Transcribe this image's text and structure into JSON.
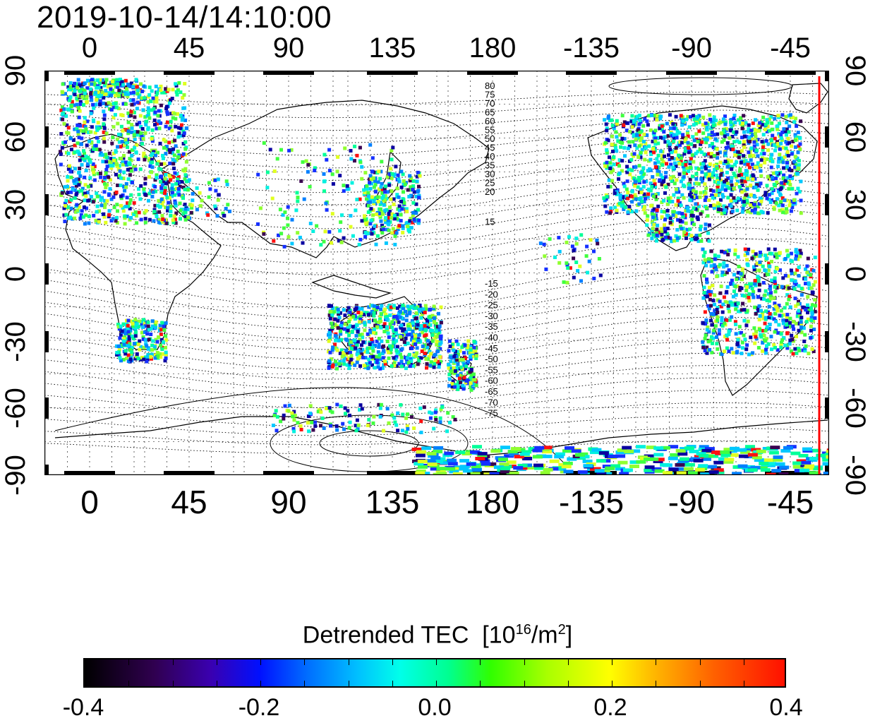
{
  "timestamp": "2019-10-14/14:10:00",
  "map": {
    "lon_ticks": [
      "0",
      "45",
      "90",
      "135",
      "180",
      "-135",
      "-90",
      "-45"
    ],
    "lat_ticks_left": [
      "90",
      "60",
      "30",
      "0",
      "-30",
      "-60",
      "-90"
    ],
    "lat_ticks_right": [
      "90",
      "60",
      "30",
      "0",
      "-30",
      "-60",
      "-90"
    ],
    "contour_labels_north": [
      "80",
      "75",
      "70",
      "65",
      "60",
      "55",
      "50",
      "45",
      "40",
      "35",
      "30",
      "25",
      "20",
      "15"
    ],
    "contour_labels_south": [
      "-15",
      "-20",
      "-25",
      "-30",
      "-35",
      "-40",
      "-45",
      "-50",
      "-55",
      "-60",
      "-65",
      "-70",
      "-75"
    ],
    "lon_range": [
      -22,
      340
    ],
    "lat_range": [
      -90,
      90
    ],
    "terminator_color": "#ff0000"
  },
  "colorbar": {
    "title": "Detrended TEC",
    "unit_base": "10",
    "unit_exp": "16",
    "unit_mid": "/m",
    "unit_exp2": "2",
    "ticks": [
      "-0.4",
      "-0.2",
      "0.0",
      "0.2",
      "0.4"
    ],
    "range": [
      -0.4,
      0.4
    ]
  }
}
